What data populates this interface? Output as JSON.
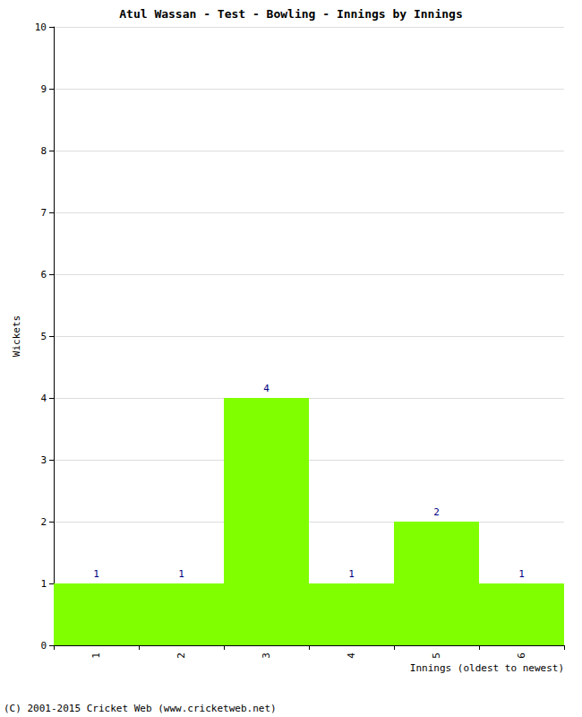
{
  "chart_data": {
    "type": "bar",
    "title": "Atul Wassan - Test - Bowling - Innings by Innings",
    "x_label": "Innings (oldest to newest)",
    "y_label": "Wickets",
    "categories": [
      "1",
      "2",
      "3",
      "4",
      "5",
      "6"
    ],
    "values": [
      1,
      1,
      4,
      1,
      2,
      1
    ],
    "color": "#80ff00",
    "ylim": [
      0,
      10
    ],
    "yticks": [
      0,
      1,
      2,
      3,
      4,
      5,
      6,
      7,
      8,
      9,
      10
    ],
    "grid": true,
    "data_labels": true,
    "annotations": [
      "(C) 2001-2015 Cricket Web (www.cricketweb.net)"
    ]
  }
}
